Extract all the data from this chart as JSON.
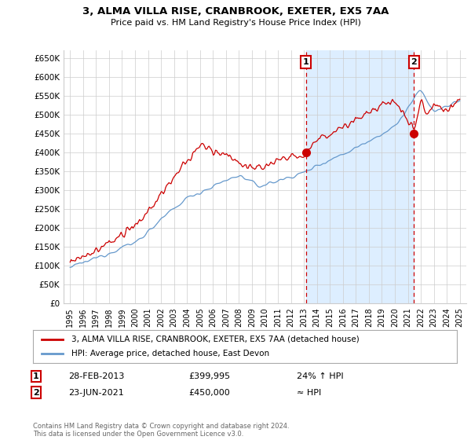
{
  "title": "3, ALMA VILLA RISE, CRANBROOK, EXETER, EX5 7AA",
  "subtitle": "Price paid vs. HM Land Registry's House Price Index (HPI)",
  "ylabel_ticks": [
    "£0",
    "£50K",
    "£100K",
    "£150K",
    "£200K",
    "£250K",
    "£300K",
    "£350K",
    "£400K",
    "£450K",
    "£500K",
    "£550K",
    "£600K",
    "£650K"
  ],
  "ytick_values": [
    0,
    50000,
    100000,
    150000,
    200000,
    250000,
    300000,
    350000,
    400000,
    450000,
    500000,
    550000,
    600000,
    650000
  ],
  "ylim": [
    0,
    670000
  ],
  "xlim_start": 1994.5,
  "xlim_end": 2025.5,
  "sale1_date": 2013.16,
  "sale1_price": 399995,
  "sale1_label": "1",
  "sale2_date": 2021.47,
  "sale2_price": 450000,
  "sale2_label": "2",
  "legend_line1": "3, ALMA VILLA RISE, CRANBROOK, EXETER, EX5 7AA (detached house)",
  "legend_line2": "HPI: Average price, detached house, East Devon",
  "table_row1_num": "1",
  "table_row1_date": "28-FEB-2013",
  "table_row1_price": "£399,995",
  "table_row1_hpi": "24% ↑ HPI",
  "table_row2_num": "2",
  "table_row2_date": "23-JUN-2021",
  "table_row2_price": "£450,000",
  "table_row2_hpi": "≈ HPI",
  "footer": "Contains HM Land Registry data © Crown copyright and database right 2024.\nThis data is licensed under the Open Government Licence v3.0.",
  "line_color_price": "#cc0000",
  "line_color_hpi": "#6699cc",
  "background_color": "#ffffff",
  "grid_color": "#cccccc",
  "dashed_line_color": "#cc0000",
  "shade_color": "#ddeeff"
}
